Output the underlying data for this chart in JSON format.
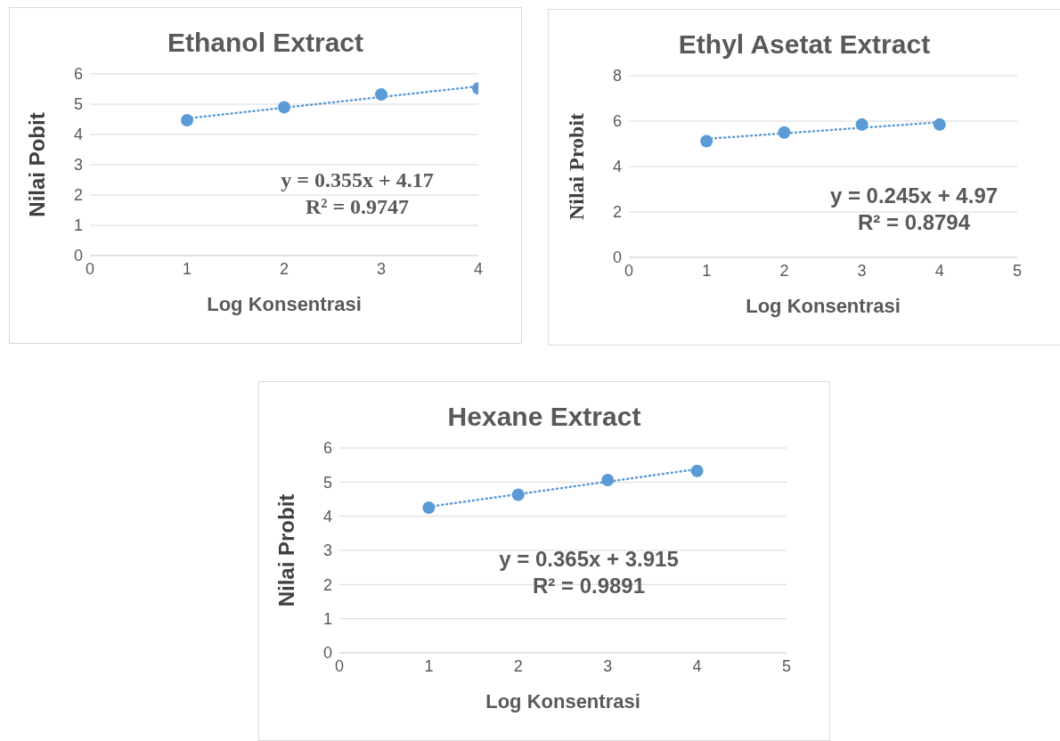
{
  "chart_data": [
    {
      "type": "scatter",
      "title": "Ethanol Extract",
      "xlabel": "Log Konsentrasi",
      "ylabel": "Nilai Pobit",
      "xlim": [
        0,
        4
      ],
      "xticks": [
        0,
        1,
        2,
        3,
        4
      ],
      "ylim": [
        0,
        6
      ],
      "yticks": [
        0,
        1,
        2,
        3,
        4,
        5,
        6
      ],
      "grid": "y",
      "series": [
        {
          "color": "#5b9bd5",
          "marker": "circle",
          "x": [
            1,
            2,
            3,
            4
          ],
          "values": [
            4.47,
            4.9,
            5.32,
            5.52
          ]
        },
        {
          "type": "line",
          "color": "#5b9bd5",
          "marker": "none",
          "line_style": "dotted",
          "x": [
            1,
            4
          ],
          "values": [
            4.53,
            5.59
          ]
        }
      ],
      "annotations": [
        "y = 0.355x + 4.17",
        "R² = 0.9747"
      ]
    },
    {
      "type": "scatter",
      "title": "Ethyl Asetat Extract",
      "xlabel": "Log Konsentrasi",
      "ylabel": "Nilai Probit",
      "xlim": [
        0,
        5
      ],
      "xticks": [
        0,
        1,
        2,
        3,
        4,
        5
      ],
      "ylim": [
        0,
        8
      ],
      "yticks": [
        0,
        2,
        4,
        6,
        8
      ],
      "grid": "y",
      "series": [
        {
          "color": "#5b9bd5",
          "marker": "circle",
          "x": [
            1,
            2,
            3,
            4
          ],
          "values": [
            5.12,
            5.5,
            5.85,
            5.85
          ]
        },
        {
          "type": "line",
          "color": "#5b9bd5",
          "marker": "none",
          "line_style": "dotted",
          "x": [
            1,
            4
          ],
          "values": [
            5.22,
            5.95
          ]
        }
      ],
      "annotations": [
        "y = 0.245x + 4.97",
        "R² = 0.8794"
      ]
    },
    {
      "type": "scatter",
      "title": "Hexane Extract",
      "xlabel": "Log Konsentrasi",
      "ylabel": "Nilai Probit",
      "xlim": [
        0,
        5
      ],
      "xticks": [
        0,
        1,
        2,
        3,
        4,
        5
      ],
      "ylim": [
        0,
        6
      ],
      "yticks": [
        0,
        1,
        2,
        3,
        4,
        5,
        6
      ],
      "grid": "y",
      "series": [
        {
          "color": "#5b9bd5",
          "marker": "circle",
          "x": [
            1,
            2,
            3,
            4
          ],
          "values": [
            4.25,
            4.63,
            5.06,
            5.33
          ]
        },
        {
          "type": "line",
          "color": "#5b9bd5",
          "marker": "none",
          "line_style": "dotted",
          "x": [
            1,
            4
          ],
          "values": [
            4.28,
            5.38
          ]
        }
      ],
      "annotations": [
        "y = 0.365x + 3.915",
        "R² = 0.9891"
      ]
    }
  ]
}
